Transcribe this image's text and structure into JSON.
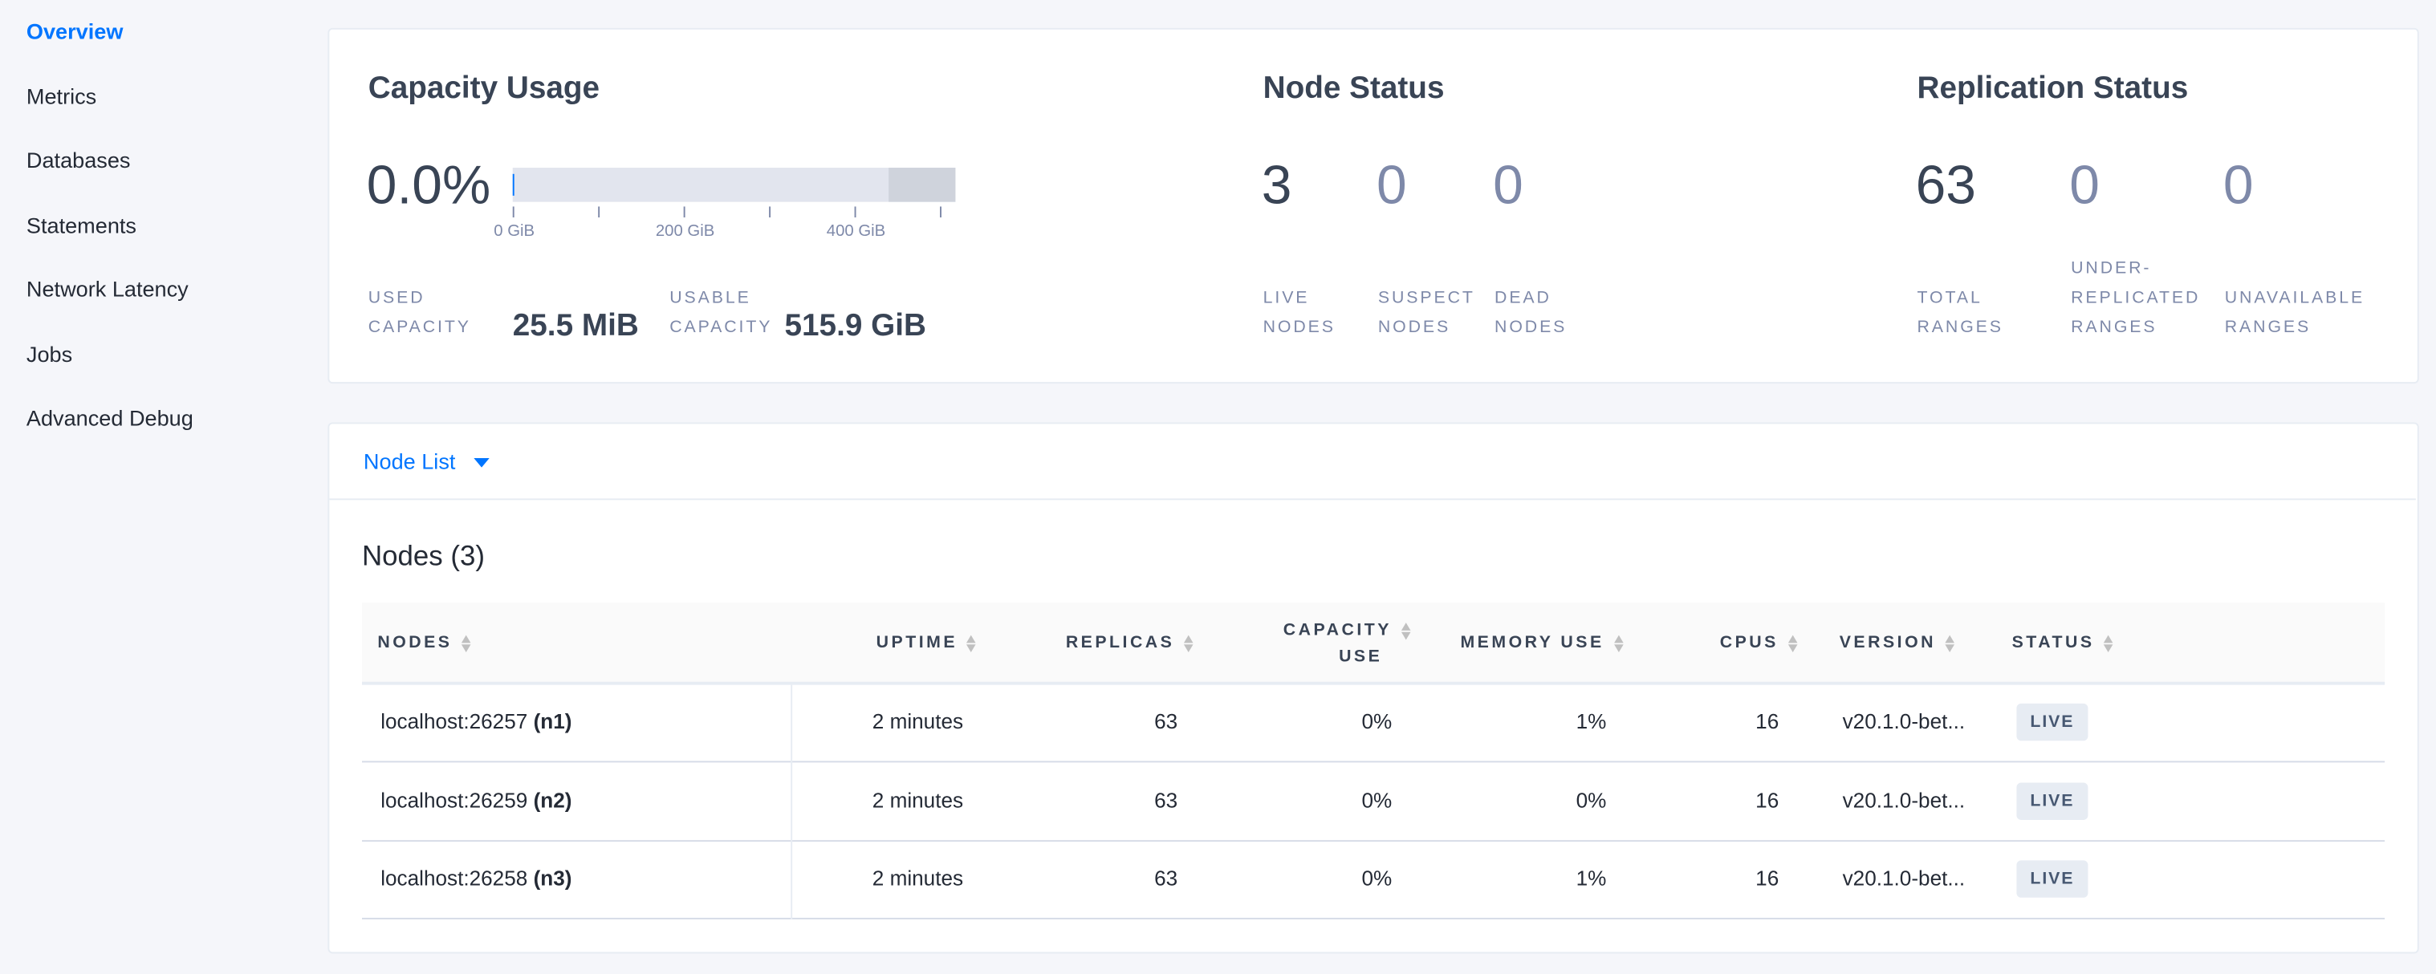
{
  "sidebar": {
    "items": [
      {
        "label": "Overview",
        "active": true
      },
      {
        "label": "Metrics"
      },
      {
        "label": "Databases"
      },
      {
        "label": "Statements"
      },
      {
        "label": "Network Latency"
      },
      {
        "label": "Jobs"
      },
      {
        "label": "Advanced Debug"
      }
    ]
  },
  "capacity": {
    "title": "Capacity Usage",
    "percent": "0.0%",
    "usage_fraction": 0.0,
    "axis_labels": [
      "0 GiB",
      "200 GiB",
      "400 GiB"
    ],
    "used_label": [
      "USED",
      "CAPACITY"
    ],
    "used_value": "25.5 MiB",
    "usable_label": [
      "USABLE",
      "CAPACITY"
    ],
    "usable_value": "515.9 GiB"
  },
  "node_status": {
    "title": "Node Status",
    "stats": [
      {
        "value": "3",
        "label": [
          "LIVE",
          "NODES"
        ]
      },
      {
        "value": "0",
        "label": [
          "SUSPECT",
          "NODES"
        ]
      },
      {
        "value": "0",
        "label": [
          "DEAD",
          "NODES"
        ]
      }
    ]
  },
  "replication": {
    "title": "Replication Status",
    "stats": [
      {
        "value": "63",
        "label": [
          "",
          "TOTAL",
          "RANGES"
        ]
      },
      {
        "value": "0",
        "label": [
          "UNDER-",
          "REPLICATED",
          "RANGES"
        ]
      },
      {
        "value": "0",
        "label": [
          "",
          "UNAVAILABLE",
          "RANGES"
        ]
      }
    ]
  },
  "node_list": {
    "dropdown_label": "Node List",
    "heading": "Nodes (3)",
    "columns": [
      "NODES",
      "UPTIME",
      "REPLICAS",
      "CAPACITY",
      "USE",
      "MEMORY USE",
      "CPUS",
      "VERSION",
      "STATUS"
    ],
    "rows": [
      {
        "host": "localhost:26257",
        "id": "(n1)",
        "uptime": "2 minutes",
        "replicas": "63",
        "capacity": "0%",
        "memory": "1%",
        "cpus": "16",
        "version": "v20.1.0-bet...",
        "status": "LIVE"
      },
      {
        "host": "localhost:26259",
        "id": "(n2)",
        "uptime": "2 minutes",
        "replicas": "63",
        "capacity": "0%",
        "memory": "0%",
        "cpus": "16",
        "version": "v20.1.0-bet...",
        "status": "LIVE"
      },
      {
        "host": "localhost:26258",
        "id": "(n3)",
        "uptime": "2 minutes",
        "replicas": "63",
        "capacity": "0%",
        "memory": "1%",
        "cpus": "16",
        "version": "v20.1.0-bet...",
        "status": "LIVE"
      }
    ]
  },
  "colors": {
    "accent": "#0075ff",
    "text": "#394455",
    "muted": "#7e89a9",
    "badge": "#e7ecf3"
  }
}
